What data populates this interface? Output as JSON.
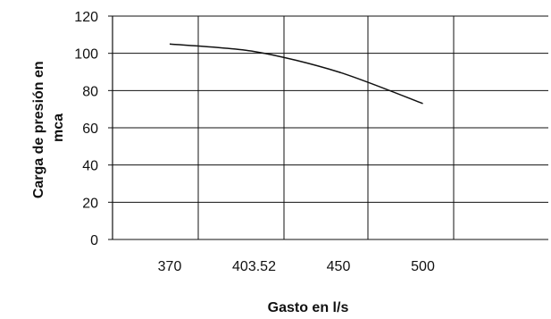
{
  "chart_data": {
    "type": "line",
    "title": "",
    "xlabel": "Gasto en l/s",
    "ylabel_lines": [
      "Carga de presión en",
      "mca"
    ],
    "categories": [
      "370",
      "403.52",
      "450",
      "500"
    ],
    "series": [
      {
        "x": [
          370,
          403.52,
          450,
          500
        ],
        "values": [
          105,
          101,
          90,
          73
        ]
      }
    ],
    "ylim": [
      0,
      120
    ],
    "yticks": [
      0,
      20,
      40,
      60,
      80,
      100,
      120
    ],
    "grid": true,
    "legend": "none",
    "colors": {
      "line": "#111111",
      "grid": "#111111"
    }
  }
}
